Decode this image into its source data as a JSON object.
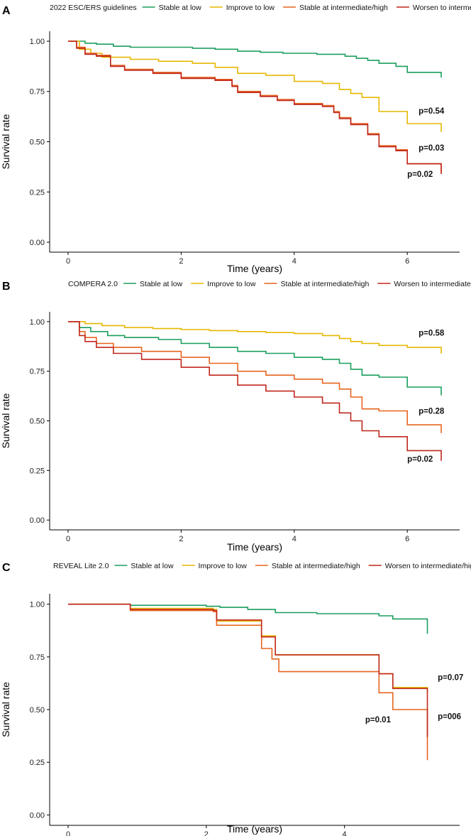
{
  "chart_data": [
    {
      "panel": "A",
      "type": "line",
      "legend_title": "2022 ESC/ERS guidelines",
      "xlabel": "Time (years)",
      "ylabel": "Survival rate",
      "xlim": [
        0,
        6.6
      ],
      "ylim": [
        0,
        1
      ],
      "xticks": [
        0,
        2,
        4,
        6
      ],
      "yticks": [
        0.0,
        0.25,
        0.5,
        0.75,
        1.0
      ],
      "ytick_labels": [
        "0.00",
        "0.25",
        "0.50",
        "0.75",
        "1.00"
      ],
      "series": [
        {
          "name": "Stable at low",
          "color": "#1b9e5e",
          "x": [
            0,
            0.3,
            0.5,
            0.8,
            1.1,
            2.2,
            2.6,
            3.0,
            3.4,
            3.8,
            4.4,
            4.9,
            5.1,
            5.3,
            5.5,
            5.8,
            6.0,
            6.6
          ],
          "y": [
            1.0,
            0.99,
            0.985,
            0.975,
            0.97,
            0.965,
            0.96,
            0.95,
            0.945,
            0.94,
            0.935,
            0.925,
            0.915,
            0.905,
            0.89,
            0.875,
            0.845,
            0.84
          ]
        },
        {
          "name": "Improve to low",
          "color": "#e6b800",
          "x": [
            0,
            0.2,
            0.4,
            0.6,
            1.1,
            1.6,
            2.2,
            2.6,
            3.0,
            3.5,
            4.0,
            4.5,
            4.8,
            5.0,
            5.2,
            5.5,
            6.0,
            6.6
          ],
          "y": [
            1.0,
            0.96,
            0.94,
            0.92,
            0.91,
            0.9,
            0.89,
            0.87,
            0.84,
            0.83,
            0.8,
            0.79,
            0.76,
            0.74,
            0.72,
            0.65,
            0.59,
            0.57
          ]
        },
        {
          "name": "Stable at intermediate/high",
          "color": "#e6641e",
          "x": [
            0,
            0.15,
            0.3,
            0.5,
            0.75,
            1.0,
            1.5,
            2.0,
            2.6,
            2.9,
            3.0,
            3.4,
            3.7,
            4.0,
            4.5,
            4.7,
            4.8,
            5.0,
            5.3,
            5.5,
            5.8,
            6.0,
            6.6
          ],
          "y": [
            1.0,
            0.97,
            0.94,
            0.93,
            0.88,
            0.86,
            0.845,
            0.82,
            0.81,
            0.78,
            0.75,
            0.73,
            0.71,
            0.69,
            0.68,
            0.65,
            0.62,
            0.59,
            0.54,
            0.48,
            0.46,
            0.39,
            0.37
          ]
        },
        {
          "name": "Worsen to intermediate/high",
          "color": "#c0271d",
          "x": [
            0,
            0.15,
            0.3,
            0.5,
            0.75,
            1.0,
            1.5,
            2.0,
            2.6,
            2.9,
            3.0,
            3.4,
            3.7,
            4.0,
            4.5,
            4.7,
            4.8,
            5.0,
            5.3,
            5.5,
            5.8,
            6.0,
            6.6
          ],
          "y": [
            1.0,
            0.965,
            0.935,
            0.925,
            0.875,
            0.855,
            0.84,
            0.815,
            0.805,
            0.775,
            0.745,
            0.725,
            0.705,
            0.685,
            0.675,
            0.645,
            0.615,
            0.585,
            0.535,
            0.475,
            0.455,
            0.39,
            0.36
          ]
        }
      ],
      "annotations": [
        {
          "text": "p=0.54",
          "x": 6.2,
          "y": 0.64
        },
        {
          "text": "p=0.03",
          "x": 6.2,
          "y": 0.455
        },
        {
          "text": "p=0.02",
          "x": 6.0,
          "y": 0.325
        }
      ]
    },
    {
      "panel": "B",
      "type": "line",
      "legend_title": "COMPERA 2.0",
      "xlabel": "Time (years)",
      "ylabel": "Survival rate",
      "xlim": [
        0,
        6.6
      ],
      "ylim": [
        0,
        1
      ],
      "xticks": [
        0,
        2,
        4,
        6
      ],
      "yticks": [
        0.0,
        0.25,
        0.5,
        0.75,
        1.0
      ],
      "ytick_labels": [
        "0.00",
        "0.25",
        "0.50",
        "0.75",
        "1.00"
      ],
      "series": [
        {
          "name": "Stable at low",
          "color": "#1b9e5e",
          "x": [
            0,
            0.2,
            0.4,
            0.7,
            1.0,
            1.6,
            2.0,
            2.5,
            3.0,
            3.5,
            4.0,
            4.5,
            4.8,
            5.0,
            5.2,
            5.5,
            6.0,
            6.6
          ],
          "y": [
            1.0,
            0.97,
            0.95,
            0.93,
            0.92,
            0.91,
            0.89,
            0.87,
            0.85,
            0.84,
            0.82,
            0.81,
            0.79,
            0.76,
            0.73,
            0.72,
            0.67,
            0.65
          ]
        },
        {
          "name": "Improve to low",
          "color": "#e6b800",
          "x": [
            0,
            0.3,
            0.6,
            1.0,
            1.5,
            2.0,
            2.5,
            3.0,
            3.5,
            4.0,
            4.5,
            4.8,
            5.0,
            5.2,
            5.5,
            6.0,
            6.6
          ],
          "y": [
            1.0,
            0.99,
            0.98,
            0.97,
            0.965,
            0.96,
            0.955,
            0.95,
            0.945,
            0.94,
            0.93,
            0.915,
            0.9,
            0.89,
            0.88,
            0.87,
            0.86
          ]
        },
        {
          "name": "Stable at intermediate/high",
          "color": "#e6641e",
          "x": [
            0,
            0.2,
            0.3,
            0.5,
            0.8,
            1.3,
            2.0,
            2.5,
            3.0,
            3.5,
            4.0,
            4.5,
            4.8,
            5.0,
            5.2,
            5.5,
            6.0,
            6.6
          ],
          "y": [
            1.0,
            0.95,
            0.92,
            0.89,
            0.87,
            0.85,
            0.82,
            0.79,
            0.75,
            0.73,
            0.71,
            0.69,
            0.66,
            0.62,
            0.56,
            0.55,
            0.48,
            0.46
          ]
        },
        {
          "name": "Worsen to intermediate/high",
          "color": "#c0271d",
          "x": [
            0,
            0.2,
            0.3,
            0.5,
            0.8,
            1.3,
            2.0,
            2.5,
            3.0,
            3.5,
            4.0,
            4.5,
            4.8,
            5.0,
            5.2,
            5.5,
            6.0,
            6.6
          ],
          "y": [
            1.0,
            0.93,
            0.9,
            0.87,
            0.84,
            0.81,
            0.77,
            0.73,
            0.68,
            0.65,
            0.62,
            0.59,
            0.54,
            0.5,
            0.45,
            0.42,
            0.35,
            0.32
          ]
        }
      ],
      "annotations": [
        {
          "text": "p=0.58",
          "x": 6.2,
          "y": 0.93
        },
        {
          "text": "p=0.28",
          "x": 6.2,
          "y": 0.535
        },
        {
          "text": "p=0.02",
          "x": 6.0,
          "y": 0.295
        }
      ]
    },
    {
      "panel": "C",
      "type": "line",
      "legend_title": "REVEAL Lite 2.0",
      "xlabel": "Time (years)",
      "ylabel": "Survival rate",
      "xlim": [
        0,
        5.4
      ],
      "ylim": [
        0,
        1
      ],
      "xticks": [
        0,
        2,
        4
      ],
      "yticks": [
        0.0,
        0.25,
        0.5,
        0.75,
        1.0
      ],
      "ytick_labels": [
        "0.00",
        "0.25",
        "0.50",
        "0.75",
        "1.00"
      ],
      "series": [
        {
          "name": "Stable at low",
          "color": "#1b9e5e",
          "x": [
            0,
            0.9,
            2.0,
            2.2,
            2.6,
            3.0,
            3.6,
            4.5,
            4.7,
            5.2
          ],
          "y": [
            1.0,
            0.995,
            0.99,
            0.985,
            0.975,
            0.96,
            0.955,
            0.945,
            0.93,
            0.88
          ]
        },
        {
          "name": "Improve to low",
          "color": "#e6b800",
          "x": [
            0,
            0.9,
            2.1,
            2.15,
            2.8,
            3.0,
            4.5,
            4.7,
            5.2
          ],
          "y": [
            1.0,
            0.98,
            0.975,
            0.92,
            0.85,
            0.76,
            0.67,
            0.605,
            0.6
          ]
        },
        {
          "name": "Stable at intermediate/high",
          "color": "#e6641e",
          "x": [
            0,
            0.9,
            2.1,
            2.15,
            2.8,
            2.95,
            3.05,
            4.5,
            4.7,
            5.2
          ],
          "y": [
            1.0,
            0.97,
            0.965,
            0.9,
            0.79,
            0.74,
            0.68,
            0.58,
            0.5,
            0.28
          ]
        },
        {
          "name": "Worsen to intermediate/high",
          "color": "#c0271d",
          "x": [
            0,
            0.9,
            2.1,
            2.15,
            2.8,
            3.0,
            4.5,
            4.7,
            5.2
          ],
          "y": [
            1.0,
            0.975,
            0.97,
            0.925,
            0.845,
            0.76,
            0.67,
            0.6,
            0.39
          ]
        }
      ],
      "annotations": [
        {
          "text": "p=0.07",
          "x": 5.35,
          "y": 0.64
        },
        {
          "text": "p=006",
          "x": 5.35,
          "y": 0.455
        },
        {
          "text": "p=0.01",
          "x": 4.3,
          "y": 0.44
        }
      ]
    }
  ]
}
